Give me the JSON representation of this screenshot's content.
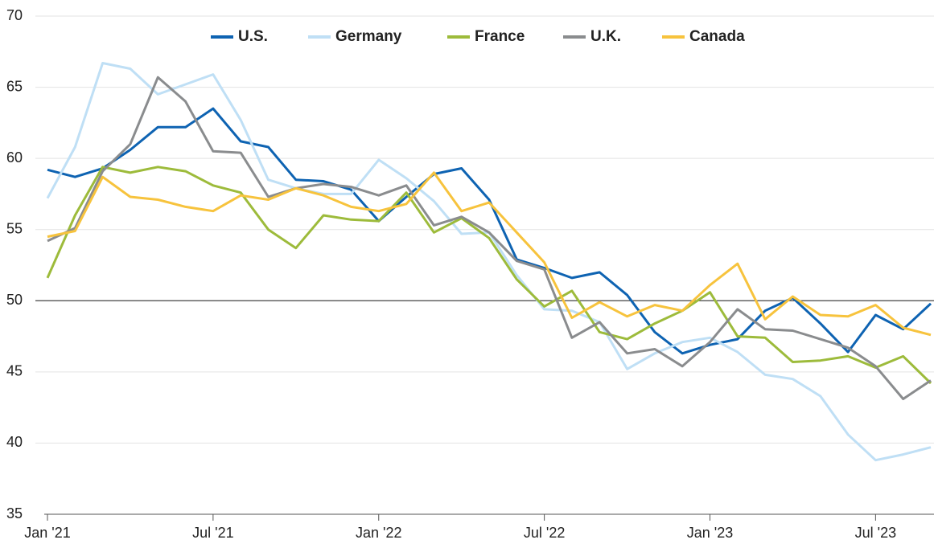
{
  "chart_data": {
    "type": "line",
    "categories": [
      "Jan '21",
      null,
      null,
      null,
      null,
      null,
      "Jul '21",
      null,
      null,
      null,
      null,
      null,
      "Jan '22",
      null,
      null,
      null,
      null,
      null,
      "Jul '22",
      null,
      null,
      null,
      null,
      null,
      "Jan '23",
      null,
      null,
      null,
      null,
      null,
      "Jul '23",
      null,
      null
    ],
    "series": [
      {
        "name": "U.S.",
        "color": "#0e63b2",
        "values": [
          59.2,
          58.7,
          59.3,
          60.6,
          62.2,
          62.2,
          63.5,
          61.2,
          60.8,
          58.5,
          58.4,
          57.8,
          55.6,
          57.3,
          58.9,
          59.3,
          57.1,
          52.9,
          52.3,
          51.6,
          52.0,
          50.4,
          47.8,
          46.3,
          46.9,
          47.3,
          49.3,
          50.2,
          48.4,
          46.4,
          49.0,
          48.0,
          49.8
        ]
      },
      {
        "name": "Germany",
        "color": "#bfdff5",
        "values": [
          57.2,
          60.8,
          66.7,
          66.3,
          64.5,
          65.2,
          65.9,
          62.7,
          58.5,
          57.9,
          57.5,
          57.5,
          59.9,
          58.6,
          57.0,
          54.7,
          54.8,
          51.8,
          49.4,
          49.3,
          48.5,
          45.2,
          46.3,
          47.1,
          47.4,
          46.4,
          44.8,
          44.5,
          43.3,
          40.6,
          38.8,
          39.2,
          39.7
        ]
      },
      {
        "name": "France",
        "color": "#9dbb3b",
        "values": [
          51.6,
          56.0,
          59.4,
          59.0,
          59.4,
          59.1,
          58.1,
          57.6,
          55.0,
          53.7,
          56.0,
          55.7,
          55.6,
          57.6,
          54.8,
          55.8,
          54.4,
          51.5,
          49.6,
          50.7,
          47.8,
          47.3,
          48.4,
          49.3,
          50.6,
          47.5,
          47.4,
          45.7,
          45.8,
          46.1,
          45.3,
          46.1,
          44.2
        ]
      },
      {
        "name": "U.K.",
        "color": "#8a8c8e",
        "values": [
          54.2,
          55.1,
          59.1,
          61.0,
          65.7,
          64.0,
          60.5,
          60.4,
          57.3,
          57.9,
          58.2,
          58.0,
          57.4,
          58.1,
          55.3,
          55.9,
          54.8,
          52.8,
          52.2,
          47.4,
          48.5,
          46.3,
          46.6,
          45.4,
          47.1,
          49.4,
          48.0,
          47.9,
          47.3,
          46.7,
          45.4,
          43.1,
          44.4
        ]
      },
      {
        "name": "Canada",
        "color": "#f7c33d",
        "values": [
          54.5,
          54.9,
          58.7,
          57.3,
          57.1,
          56.6,
          56.3,
          57.4,
          57.1,
          57.9,
          57.4,
          56.6,
          56.3,
          56.8,
          59.0,
          56.3,
          56.9,
          54.8,
          52.7,
          48.8,
          49.9,
          48.9,
          49.7,
          49.3,
          51.1,
          52.6,
          48.7,
          50.3,
          49.0,
          48.9,
          49.7,
          48.1,
          47.6
        ]
      }
    ],
    "ylim": [
      35,
      70
    ],
    "yticks": [
      35,
      40,
      45,
      50,
      55,
      60,
      65,
      70
    ],
    "grid": true,
    "reference_line": 50,
    "legend": "top"
  }
}
